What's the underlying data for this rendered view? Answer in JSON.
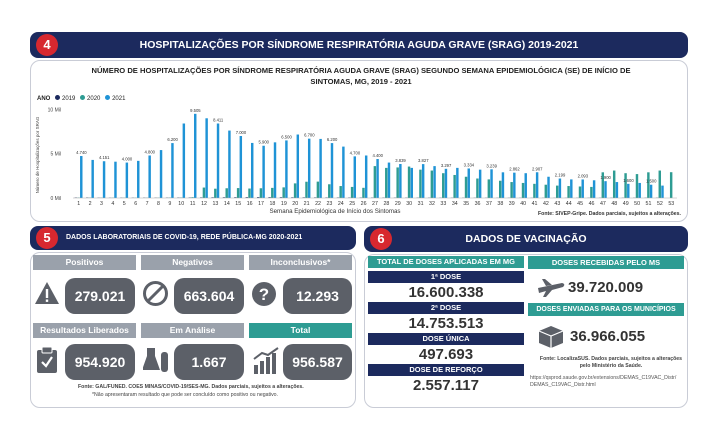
{
  "section4": {
    "number": "4",
    "title": "HOSPITALIZAÇÕES POR SÍNDROME RESPIRATÓRIA AGUDA GRAVE (SRAG) 2019-2021"
  },
  "section5": {
    "number": "5",
    "title": "DADOS LABORATORIAIS DE COVID-19, REDE PÚBLICA-MG 2020-2021",
    "cards": [
      {
        "label": "Positivos",
        "value": "279.021",
        "icon": "warning-icon"
      },
      {
        "label": "Negativos",
        "value": "663.604",
        "icon": "prohibited-icon"
      },
      {
        "label": "Inconclusivos*",
        "value": "12.293",
        "icon": "question-icon"
      },
      {
        "label": "Resultados Liberados",
        "value": "954.920",
        "icon": "clipboard-check-icon"
      },
      {
        "label": "Em Análise",
        "value": "1.667",
        "icon": "lab-flasks-icon"
      },
      {
        "label": "Total",
        "value": "956.587",
        "icon": "growth-chart-icon"
      }
    ],
    "source": "Fonte: GAL/FUNED. COES MINAS/COVID-19/SES-MG. Dados parciais, sujeitos a alterações.",
    "footnote": "*Não apresentaram resultado que pode ser concluído como positivo ou negativo."
  },
  "section6": {
    "number": "6",
    "title": "DADOS DE VACINAÇÃO",
    "applied_header": "TOTAL DE DOSES APLICADAS EM MG",
    "doses": [
      {
        "label": "1ª DOSE",
        "value": "16.600.338"
      },
      {
        "label": "2ª DOSE",
        "value": "14.753.513"
      },
      {
        "label": "DOSE ÚNICA",
        "value": "497.693"
      },
      {
        "label": "DOSE DE REFORÇO",
        "value": "2.557.117"
      }
    ],
    "received_header": "DOSES RECEBIDAS PELO MS",
    "received_value": "39.720.009",
    "sent_header": "DOSES ENVIADAS PARA OS MUNICÍPIOS",
    "sent_value": "36.966.055",
    "source": "Fonte: LocalizaSUS. Dados parciais, sujeitos a alterações pelo Ministério da Saúde.",
    "url": "https://qsprod.saude.gov.br/extensions/DEMAS_C19VAC_Distr/DEMAS_C19VAC_Distr.html"
  },
  "chart_data": {
    "type": "bar",
    "title": "NÚMERO DE HOSPITALIZAÇÕES POR SÍNDROME RESPIRATÓRIA AGUDA GRAVE (SRAG) SEGUNDO SEMANA EPIDEMIOLÓGICA (SE) DE INÍCIO DE SINTOMAS, MG, 2019 - 2021",
    "legend_title": "ANO",
    "xlabel": "Semana Epidemiológica de Início dos Sintomas",
    "ylabel": "Número de Hospitalizações por SRAG",
    "y_ticks": [
      "0 Mil",
      "5 Mil",
      "10 Mil"
    ],
    "ylim": [
      0,
      10500
    ],
    "source": "Fonte: SIVEP-Gripe. Dados parciais, sujeitos a alterações.",
    "categories": [
      "1",
      "2",
      "3",
      "4",
      "5",
      "6",
      "7",
      "8",
      "9",
      "10",
      "11",
      "12",
      "13",
      "14",
      "15",
      "16",
      "17",
      "18",
      "19",
      "20",
      "21",
      "22",
      "23",
      "24",
      "25",
      "26",
      "27",
      "28",
      "29",
      "30",
      "31",
      "32",
      "33",
      "34",
      "35",
      "36",
      "37",
      "38",
      "39",
      "40",
      "41",
      "42",
      "43",
      "44",
      "45",
      "46",
      "47",
      "48",
      "49",
      "50",
      "51",
      "52",
      "53"
    ],
    "series": [
      {
        "name": "2019",
        "color": "#1c2a5e",
        "values": [
          47,
          49,
          31,
          27,
          34,
          31,
          33,
          32,
          37,
          46,
          52,
          61,
          70,
          75,
          80,
          85,
          90,
          85,
          80,
          70,
          65,
          60,
          55,
          50,
          45,
          42,
          40,
          38,
          36,
          34,
          32,
          30,
          28,
          27,
          26,
          25,
          24,
          23,
          22,
          21,
          20,
          20,
          20,
          20,
          21,
          22,
          23,
          24,
          25,
          26,
          27,
          28,
          0
        ]
      },
      {
        "name": "2020",
        "color": "#2e9c93",
        "values": [
          40,
          42,
          35,
          33,
          31,
          32,
          30,
          34,
          48,
          50,
          90,
          1179,
          1050,
          1100,
          1120,
          1070,
          1100,
          1142,
          1200,
          1650,
          1837,
          1850,
          1550,
          1350,
          1250,
          1150,
          3600,
          3400,
          3450,
          3550,
          3200,
          3100,
          2800,
          2600,
          2400,
          2200,
          2100,
          1950,
          1800,
          1700,
          1600,
          1500,
          1400,
          1350,
          1300,
          1250,
          2900,
          3100,
          2800,
          2700,
          2900,
          3100,
          2913
        ]
      },
      {
        "name": "2021",
        "color": "#1f93d6",
        "values": [
          4740,
          4300,
          4151,
          4100,
          4000,
          4194,
          4800,
          5411,
          6200,
          8411,
          9505,
          9000,
          8411,
          7613,
          7000,
          6217,
          5900,
          6284,
          6500,
          7167,
          6700,
          6671,
          6200,
          5803,
          4700,
          4799,
          4400,
          4000,
          3839,
          3400,
          3827,
          3600,
          3297,
          3400,
          3334,
          3200,
          3239,
          2900,
          2862,
          2800,
          2907,
          2400,
          2199,
          2100,
          2093,
          2000,
          1900,
          1800,
          1600,
          1700,
          1500,
          1400,
          0
        ]
      }
    ]
  }
}
